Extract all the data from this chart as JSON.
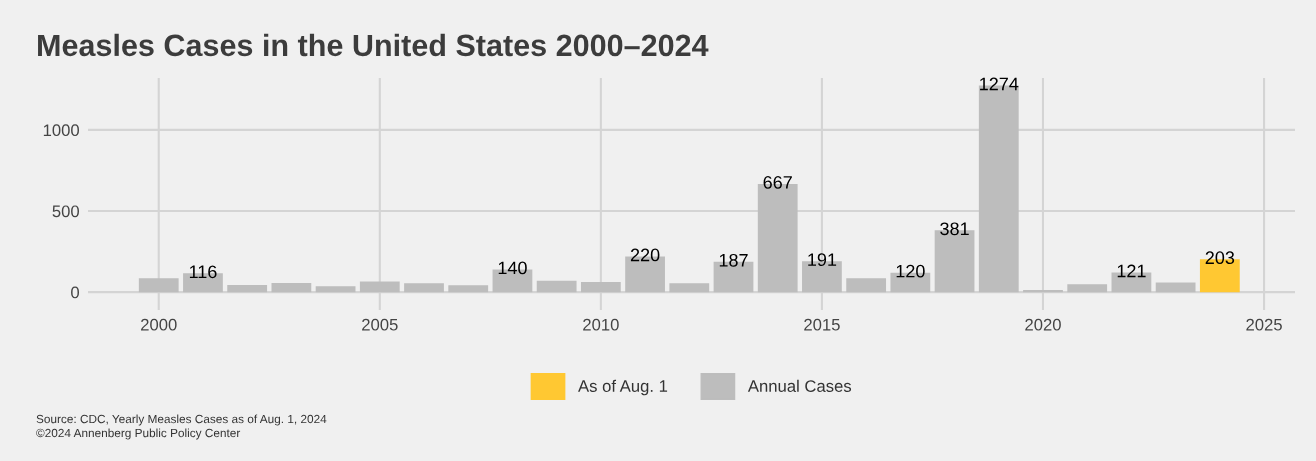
{
  "chart_data": {
    "type": "bar",
    "title": "Measles Cases in the United States 2000–2024",
    "x": [
      2000,
      2001,
      2002,
      2003,
      2004,
      2005,
      2006,
      2007,
      2008,
      2009,
      2010,
      2011,
      2012,
      2013,
      2014,
      2015,
      2016,
      2017,
      2018,
      2019,
      2020,
      2021,
      2022,
      2023,
      2024
    ],
    "series": [
      {
        "name": "As of Aug. 1",
        "color": "#ffc832",
        "values": [
          null,
          null,
          null,
          null,
          null,
          null,
          null,
          null,
          null,
          null,
          null,
          null,
          null,
          null,
          null,
          null,
          null,
          null,
          null,
          null,
          null,
          null,
          null,
          null,
          203
        ],
        "value_labels": [
          null,
          null,
          null,
          null,
          null,
          null,
          null,
          null,
          null,
          null,
          null,
          null,
          null,
          null,
          null,
          null,
          null,
          null,
          null,
          null,
          null,
          null,
          null,
          null,
          "203"
        ]
      },
      {
        "name": "Annual Cases",
        "color": "#bdbdbd",
        "values": [
          86,
          116,
          44,
          56,
          37,
          66,
          55,
          43,
          140,
          71,
          63,
          220,
          55,
          187,
          667,
          191,
          86,
          120,
          381,
          1274,
          13,
          49,
          121,
          59,
          null
        ],
        "value_labels": [
          null,
          "116",
          null,
          null,
          null,
          null,
          null,
          null,
          "140",
          null,
          null,
          "220",
          null,
          "187",
          "667",
          "191",
          null,
          "120",
          "381",
          "1274",
          null,
          null,
          "121",
          null,
          null
        ]
      }
    ],
    "xlim": [
      1998.4,
      2025.7
    ],
    "xticks": [
      2000,
      2005,
      2010,
      2015,
      2020,
      2025
    ],
    "ylim": [
      -110,
      1320
    ],
    "yticks": [
      0,
      500,
      1000
    ],
    "grid": true,
    "legend": "bottom",
    "annotations": [
      "Source: CDC, Yearly Measles Cases as of Aug. 1, 2024",
      "©2024 Annenberg Public Policy Center"
    ]
  }
}
